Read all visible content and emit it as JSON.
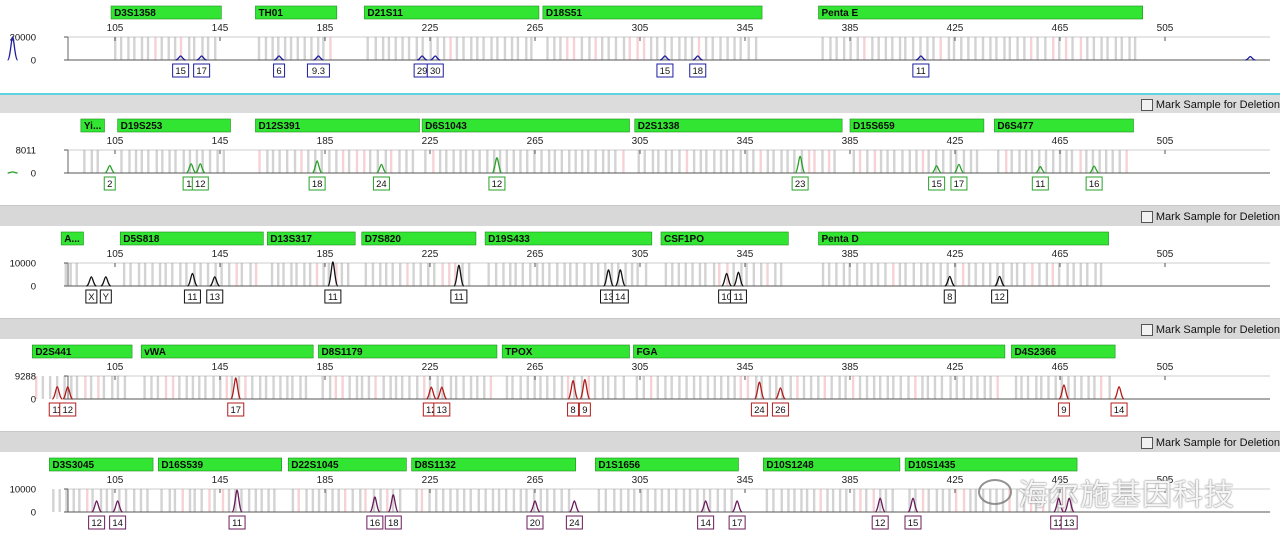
{
  "mark_sample_label": "Mark Sample for Deletion",
  "x_axis": {
    "min": 65,
    "max": 545,
    "ticks": [
      105,
      145,
      185,
      225,
      265,
      305,
      345,
      385,
      425,
      465,
      505
    ]
  },
  "watermark": "海尔施基因科技",
  "chart_data": [
    {
      "type": "line",
      "color": "#1c1ca0",
      "ylim": [
        0,
        20000
      ],
      "ytick": "20000",
      "loci": [
        {
          "name": "D3S1358",
          "start": 103.5,
          "end": 145.5
        },
        {
          "name": "TH01",
          "start": 158.5,
          "end": 189.5
        },
        {
          "name": "D21S11",
          "start": 200,
          "end": 266.5
        },
        {
          "name": "D18S51",
          "start": 268,
          "end": 351.5
        },
        {
          "name": "Penta E",
          "start": 373,
          "end": 496.5
        }
      ],
      "peaks": [
        {
          "x": 66,
          "h": 20000,
          "label": ""
        },
        {
          "x": 130,
          "h": 3500,
          "label": "15"
        },
        {
          "x": 138,
          "h": 3500,
          "label": "17"
        },
        {
          "x": 167.5,
          "h": 3500,
          "label": "6"
        },
        {
          "x": 182.5,
          "h": 3500,
          "label": "9.3"
        },
        {
          "x": 222,
          "h": 3500,
          "label": "29"
        },
        {
          "x": 227,
          "h": 3500,
          "label": "30"
        },
        {
          "x": 314.5,
          "h": 3500,
          "label": "15"
        },
        {
          "x": 327,
          "h": 3500,
          "label": "18"
        },
        {
          "x": 412,
          "h": 3500,
          "label": "11"
        },
        {
          "x": 537.5,
          "h": 3000,
          "label": ""
        }
      ]
    },
    {
      "type": "line",
      "color": "#28a028",
      "ylim": [
        0,
        8011
      ],
      "ytick": "8011",
      "loci": [
        {
          "name": "Yi...",
          "start": 92,
          "end": 101
        },
        {
          "name": "D19S253",
          "start": 106,
          "end": 149
        },
        {
          "name": "D12S391",
          "start": 158.5,
          "end": 221
        },
        {
          "name": "D6S1043",
          "start": 222,
          "end": 301
        },
        {
          "name": "D2S1338",
          "start": 303,
          "end": 382
        },
        {
          "name": "D15S659",
          "start": 385,
          "end": 436
        },
        {
          "name": "D6S477",
          "start": 440,
          "end": 493
        }
      ],
      "peaks": [
        {
          "x": 66,
          "h": 400,
          "label": ""
        },
        {
          "x": 103,
          "h": 2600,
          "label": "2"
        },
        {
          "x": 134,
          "h": 3200,
          "label": "11"
        },
        {
          "x": 137.5,
          "h": 3200,
          "label": "12"
        },
        {
          "x": 182,
          "h": 4200,
          "label": "18"
        },
        {
          "x": 206.5,
          "h": 3000,
          "label": "24"
        },
        {
          "x": 250.5,
          "h": 5300,
          "label": "12"
        },
        {
          "x": 366,
          "h": 5800,
          "label": "23"
        },
        {
          "x": 418,
          "h": 2500,
          "label": "15"
        },
        {
          "x": 426.5,
          "h": 3000,
          "label": "17"
        },
        {
          "x": 457.5,
          "h": 2200,
          "label": "11"
        },
        {
          "x": 478,
          "h": 2400,
          "label": "16"
        }
      ]
    },
    {
      "type": "line",
      "color": "#111111",
      "ylim": [
        0,
        10000
      ],
      "ytick": "10000",
      "loci": [
        {
          "name": "A...",
          "start": 84.5,
          "end": 93
        },
        {
          "name": "D5S818",
          "start": 107,
          "end": 161.5
        },
        {
          "name": "D13S317",
          "start": 163,
          "end": 196.5
        },
        {
          "name": "D7S820",
          "start": 199,
          "end": 242.5
        },
        {
          "name": "D19S433",
          "start": 246,
          "end": 309.5
        },
        {
          "name": "CSF1PO",
          "start": 313,
          "end": 361.5
        },
        {
          "name": "Penta D",
          "start": 373,
          "end": 483.5
        }
      ],
      "peaks": [
        {
          "x": 96,
          "h": 4000,
          "label": "X"
        },
        {
          "x": 101.5,
          "h": 4000,
          "label": "Y"
        },
        {
          "x": 134.5,
          "h": 5500,
          "label": "11"
        },
        {
          "x": 143,
          "h": 4000,
          "label": "13"
        },
        {
          "x": 188,
          "h": 10500,
          "label": "11"
        },
        {
          "x": 236,
          "h": 9000,
          "label": "11"
        },
        {
          "x": 293,
          "h": 7000,
          "label": "13"
        },
        {
          "x": 297.5,
          "h": 7000,
          "label": "14"
        },
        {
          "x": 338,
          "h": 5500,
          "label": "10"
        },
        {
          "x": 342.5,
          "h": 6000,
          "label": "11"
        },
        {
          "x": 423,
          "h": 4200,
          "label": "8"
        },
        {
          "x": 442,
          "h": 4200,
          "label": "12"
        }
      ]
    },
    {
      "type": "line",
      "color": "#b31b1b",
      "ylim": [
        0,
        9288
      ],
      "ytick": "9288",
      "loci": [
        {
          "name": "D2S441",
          "start": 73.5,
          "end": 111.5
        },
        {
          "name": "vWA",
          "start": 115,
          "end": 180.5
        },
        {
          "name": "D8S1179",
          "start": 182.5,
          "end": 250.5
        },
        {
          "name": "TPOX",
          "start": 252.5,
          "end": 301
        },
        {
          "name": "FGA",
          "start": 302.5,
          "end": 444
        },
        {
          "name": "D4S2366",
          "start": 446.5,
          "end": 486
        }
      ],
      "peaks": [
        {
          "x": 83,
          "h": 5000,
          "label": "11"
        },
        {
          "x": 87,
          "h": 5000,
          "label": "12"
        },
        {
          "x": 151,
          "h": 8500,
          "label": "17"
        },
        {
          "x": 225.5,
          "h": 4800,
          "label": "12"
        },
        {
          "x": 229.5,
          "h": 4800,
          "label": "13"
        },
        {
          "x": 279.5,
          "h": 7400,
          "label": "8"
        },
        {
          "x": 284,
          "h": 7800,
          "label": "9"
        },
        {
          "x": 350.5,
          "h": 6800,
          "label": "24"
        },
        {
          "x": 358.5,
          "h": 4500,
          "label": "26"
        },
        {
          "x": 466.5,
          "h": 5700,
          "label": "9"
        },
        {
          "x": 487.5,
          "h": 5000,
          "label": "14"
        }
      ]
    },
    {
      "type": "line",
      "color": "#6a1a5a",
      "ylim": [
        0,
        10000
      ],
      "ytick": "10000",
      "loci": [
        {
          "name": "D3S3045",
          "start": 80,
          "end": 119.5
        },
        {
          "name": "D16S539",
          "start": 121.5,
          "end": 168.5
        },
        {
          "name": "D22S1045",
          "start": 171,
          "end": 216
        },
        {
          "name": "D8S1132",
          "start": 218,
          "end": 280.5
        },
        {
          "name": "D1S1656",
          "start": 288,
          "end": 342.5
        },
        {
          "name": "D10S1248",
          "start": 352,
          "end": 404
        },
        {
          "name": "D10S1435",
          "start": 406,
          "end": 471.5
        }
      ],
      "peaks": [
        {
          "x": 98,
          "h": 4800,
          "label": "12"
        },
        {
          "x": 106,
          "h": 4800,
          "label": "14"
        },
        {
          "x": 151.5,
          "h": 9500,
          "label": "11"
        },
        {
          "x": 204,
          "h": 6500,
          "label": "16"
        },
        {
          "x": 211,
          "h": 7500,
          "label": "18"
        },
        {
          "x": 265,
          "h": 4800,
          "label": "20"
        },
        {
          "x": 280,
          "h": 4800,
          "label": "24"
        },
        {
          "x": 330,
          "h": 4800,
          "label": "14"
        },
        {
          "x": 342,
          "h": 4800,
          "label": "17"
        },
        {
          "x": 396.5,
          "h": 6000,
          "label": "12"
        },
        {
          "x": 409,
          "h": 6000,
          "label": "15"
        },
        {
          "x": 464.5,
          "h": 6000,
          "label": "12"
        },
        {
          "x": 468.5,
          "h": 6000,
          "label": "13"
        }
      ]
    }
  ]
}
